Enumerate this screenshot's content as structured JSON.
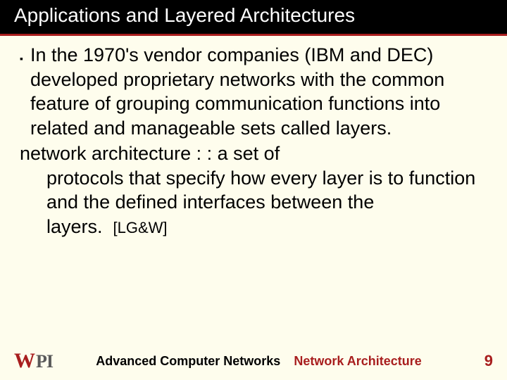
{
  "colors": {
    "background": "#fefded",
    "title_bg": "#000000",
    "title_fg": "#ffffff",
    "accent": "#a81e1e",
    "text": "#000000",
    "logo_secondary": "#5a5a5a"
  },
  "title": "Applications and Layered Architectures",
  "bullet": {
    "mark": "▪",
    "text": "In the 1970's vendor companies (IBM and DEC) developed proprietary networks with the common feature of grouping communication functions into related and manageable sets called layers."
  },
  "definition": {
    "term": "network architecture : :",
    "body": "a set of protocols that specify how every layer is to function and the defined interfaces between the layers.",
    "cite": "[LG&W]"
  },
  "footer": {
    "logo_w": "W",
    "logo_pi": "PI",
    "course": "Advanced Computer Networks",
    "topic": "Network Architecture",
    "page": "9"
  },
  "typography": {
    "title_fontsize": 28,
    "body_fontsize": 27,
    "footer_fontsize": 18,
    "cite_fontsize": 22,
    "page_fontsize": 22
  }
}
